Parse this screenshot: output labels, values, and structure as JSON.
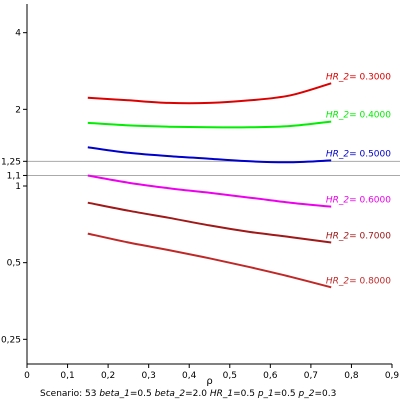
{
  "chart_data": {
    "type": "line",
    "xlabel": "ρ",
    "ylabel": "",
    "xlim": [
      0,
      0.9
    ],
    "ylim": [
      0.2,
      5
    ],
    "yscale": "log",
    "xticks": [
      "0",
      "0,1",
      "0,2",
      "0,3",
      "0,4",
      "0,5",
      "0,6",
      "0,7",
      "0,8",
      "0,9"
    ],
    "yticks": [
      {
        "value": 0.25,
        "label": "0,25"
      },
      {
        "value": 0.5,
        "label": "0,5"
      },
      {
        "value": 1,
        "label": "1"
      },
      {
        "value": 1.1,
        "label": "1,1"
      },
      {
        "value": 1.25,
        "label": "1,25"
      },
      {
        "value": 2,
        "label": "2"
      },
      {
        "value": 4,
        "label": "4"
      }
    ],
    "reference_lines": [
      1.1,
      1.25
    ],
    "x": [
      0.15,
      0.25,
      0.35,
      0.45,
      0.55,
      0.65,
      0.75
    ],
    "series": [
      {
        "name": "0.3000",
        "color": "#dd0000",
        "values": [
          2.22,
          2.17,
          2.12,
          2.12,
          2.17,
          2.27,
          2.53
        ]
      },
      {
        "name": "0.4000",
        "color": "#00ee00",
        "values": [
          1.77,
          1.73,
          1.71,
          1.7,
          1.7,
          1.72,
          1.79
        ]
      },
      {
        "name": "0.5000",
        "color": "#0000cc",
        "values": [
          1.42,
          1.35,
          1.31,
          1.28,
          1.25,
          1.24,
          1.26
        ]
      },
      {
        "name": "0.6000",
        "color": "#ee00ee",
        "values": [
          1.1,
          1.03,
          0.98,
          0.94,
          0.9,
          0.86,
          0.83
        ]
      },
      {
        "name": "0.7000",
        "color": "#a01818",
        "values": [
          0.86,
          0.8,
          0.75,
          0.7,
          0.66,
          0.63,
          0.6
        ]
      },
      {
        "name": "0.8000",
        "color": "#c02828",
        "values": [
          0.65,
          0.6,
          0.56,
          0.52,
          0.48,
          0.44,
          0.4
        ]
      }
    ],
    "series_label_prefix": "HR_2",
    "grid": false,
    "legend": "inline-right"
  },
  "footer": {
    "scenario_label": "Scenario:",
    "scenario_value": "53",
    "params": [
      {
        "name": "beta_1",
        "value": "0.5"
      },
      {
        "name": "beta_2",
        "value": "2.0"
      },
      {
        "name": "HR_1",
        "value": "0.5"
      },
      {
        "name": "p_1",
        "value": "0.5"
      },
      {
        "name": "p_2",
        "value": "0.3"
      }
    ]
  },
  "colors": {
    "axis": "#000000",
    "reference_line": "#aaaaaa",
    "background": "#ffffff"
  }
}
